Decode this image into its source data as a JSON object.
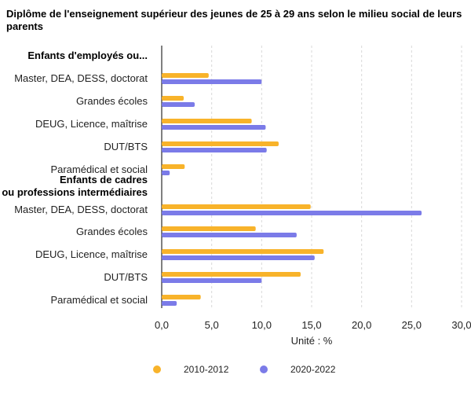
{
  "chart_data": {
    "type": "bar",
    "orientation": "horizontal",
    "title": "Diplôme de l'enseignement supérieur des jeunes de 25 à 29 ans selon le milieu social de leurs parents",
    "xlabel": "Unité : %",
    "xlim": [
      0,
      30
    ],
    "xticks": [
      "0,0",
      "5,0",
      "10,0",
      "15,0",
      "20,0",
      "25,0",
      "30,0"
    ],
    "grid": "vertical dashed",
    "legend_position": "bottom",
    "groups": [
      {
        "label": "Enfants d'employés ou...",
        "label_lines": [
          "Enfants d'employés ou..."
        ],
        "categories": [
          "Master, DEA, DESS, doctorat",
          "Grandes écoles",
          "DEUG, Licence, maîtrise",
          "DUT/BTS",
          "Paramédical et social"
        ]
      },
      {
        "label": "Enfants de cadres ou professions intermédiaires",
        "label_lines": [
          "Enfants de cadres",
          "ou professions intermédiaires"
        ],
        "categories": [
          "Master, DEA, DESS, doctorat",
          "Grandes écoles",
          "DEUG, Licence, maîtrise",
          "DUT/BTS",
          "Paramédical et social"
        ]
      }
    ],
    "series": [
      {
        "name": "2010-2012",
        "color": "#F8B32A",
        "values": [
          4.7,
          2.2,
          9.0,
          11.7,
          2.3,
          14.9,
          9.4,
          16.2,
          13.9,
          3.9
        ]
      },
      {
        "name": "2020-2022",
        "color": "#7B7BE8",
        "values": [
          10.0,
          3.3,
          10.4,
          10.5,
          0.8,
          26.0,
          13.5,
          15.3,
          10.0,
          1.5
        ]
      }
    ]
  }
}
